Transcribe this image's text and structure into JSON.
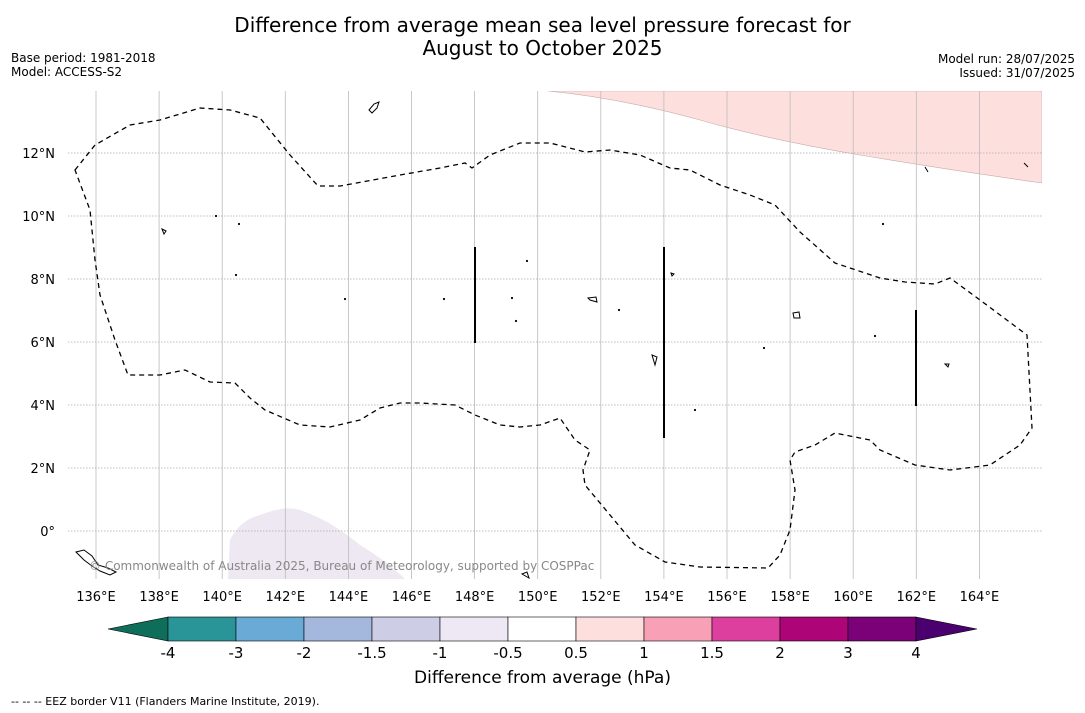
{
  "title_line1": "Difference from average mean sea level pressure forecast for",
  "title_line2": "August to October 2025",
  "meta_left": [
    "Base period: 1981-2018",
    "Model: ACCESS-S2"
  ],
  "meta_right": [
    "Model run: 28/07/2025",
    "Issued: 31/07/2025"
  ],
  "map": {
    "lon_ticks": [
      "136°E",
      "138°E",
      "140°E",
      "142°E",
      "144°E",
      "146°E",
      "148°E",
      "150°E",
      "152°E",
      "154°E",
      "156°E",
      "158°E",
      "160°E",
      "162°E",
      "164°E"
    ],
    "lat_ticks": [
      "12°N",
      "10°N",
      "8°N",
      "6°N",
      "4°N",
      "2°N",
      "0°"
    ],
    "copyright": "© Commonwealth of Australia 2025, Bureau of Meteorology, supported by COSPPac"
  },
  "colorbar": {
    "title": "Difference from average (hPa)",
    "labels": [
      "-4",
      "-3",
      "-2",
      "-1.5",
      "-1",
      "-0.5",
      "0.5",
      "1",
      "1.5",
      "2",
      "3",
      "4"
    ],
    "colors": [
      "#1a8a8a",
      "#2a9599",
      "#6aaad6",
      "#a4b8de",
      "#cdcde6",
      "#ede8f3",
      "#ffffff",
      "#fde0de",
      "#f8a0b6",
      "#dd3f9f",
      "#ad0478",
      "#7a0177",
      "#54007a"
    ],
    "extend_low_color": "#0e6e5a",
    "extend_high_color": "#4b0070"
  },
  "footnote": "--  --  -- EEZ border V11 (Flanders Marine Institute, 2019)."
}
